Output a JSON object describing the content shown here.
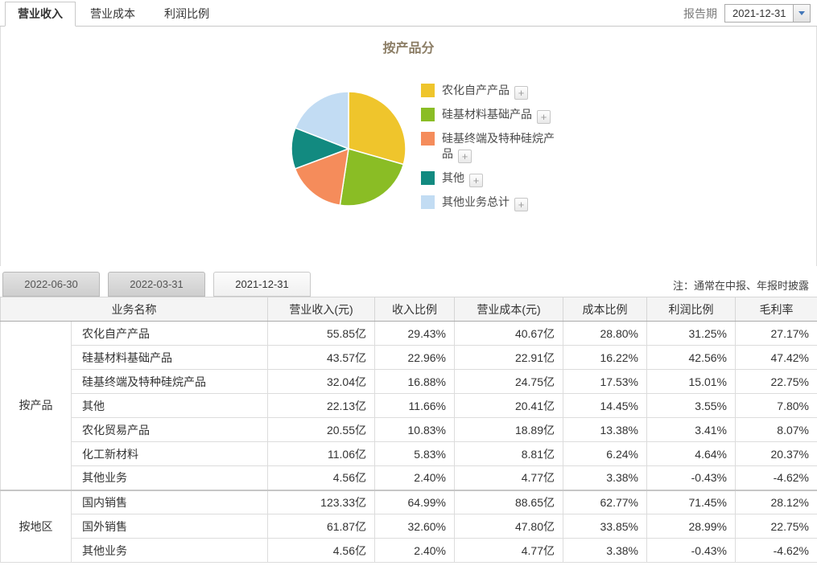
{
  "tabs": [
    {
      "id": "revenue",
      "label": "营业收入",
      "active": true
    },
    {
      "id": "cost",
      "label": "营业成本",
      "active": false
    },
    {
      "id": "profit-ratio",
      "label": "利润比例",
      "active": false
    }
  ],
  "report_period": {
    "label": "报告期",
    "value": "2021-12-31"
  },
  "chart_data": {
    "type": "pie",
    "title": "按产品分",
    "legend_position": "right",
    "unit": "percent",
    "series": [
      {
        "name": "农化自产产品",
        "value": 29.43,
        "color": "#EFC52C"
      },
      {
        "name": "硅基材料基础产品",
        "value": 22.96,
        "color": "#8ABD25"
      },
      {
        "name": "硅基终端及特种硅烷产品",
        "value": 16.88,
        "color": "#F58C5B"
      },
      {
        "name": "其他",
        "value": 11.66,
        "color": "#128A80"
      },
      {
        "name": "其他业务总计",
        "value": 19.06,
        "color": "#C2DCF3"
      }
    ],
    "plus_button_label": "+"
  },
  "date_tabs": {
    "options": [
      "2022-06-30",
      "2022-03-31",
      "2021-12-31"
    ],
    "selected": "2021-12-31"
  },
  "note": "注：通常在中报、年报时披露",
  "table": {
    "headers": [
      "业务名称",
      "营业收入(元)",
      "收入比例",
      "营业成本(元)",
      "成本比例",
      "利润比例",
      "毛利率"
    ],
    "groups": [
      {
        "label": "按产品",
        "rows": [
          [
            "农化自产产品",
            "55.85亿",
            "29.43%",
            "40.67亿",
            "28.80%",
            "31.25%",
            "27.17%"
          ],
          [
            "硅基材料基础产品",
            "43.57亿",
            "22.96%",
            "22.91亿",
            "16.22%",
            "42.56%",
            "47.42%"
          ],
          [
            "硅基终端及特种硅烷产品",
            "32.04亿",
            "16.88%",
            "24.75亿",
            "17.53%",
            "15.01%",
            "22.75%"
          ],
          [
            "其他",
            "22.13亿",
            "11.66%",
            "20.41亿",
            "14.45%",
            "3.55%",
            "7.80%"
          ],
          [
            "农化贸易产品",
            "20.55亿",
            "10.83%",
            "18.89亿",
            "13.38%",
            "3.41%",
            "8.07%"
          ],
          [
            "化工新材料",
            "11.06亿",
            "5.83%",
            "8.81亿",
            "6.24%",
            "4.64%",
            "20.37%"
          ],
          [
            "其他业务",
            "4.56亿",
            "2.40%",
            "4.77亿",
            "3.38%",
            "-0.43%",
            "-4.62%"
          ]
        ]
      },
      {
        "label": "按地区",
        "rows": [
          [
            "国内销售",
            "123.33亿",
            "64.99%",
            "88.65亿",
            "62.77%",
            "71.45%",
            "28.12%"
          ],
          [
            "国外销售",
            "61.87亿",
            "32.60%",
            "47.80亿",
            "33.85%",
            "28.99%",
            "22.75%"
          ],
          [
            "其他业务",
            "4.56亿",
            "2.40%",
            "4.77亿",
            "3.38%",
            "-0.43%",
            "-4.62%"
          ]
        ]
      }
    ]
  },
  "colors": {
    "accent_blue": "#4377B8",
    "header_bg": "#F4F4F4",
    "title_brown": "#8C7E66"
  }
}
